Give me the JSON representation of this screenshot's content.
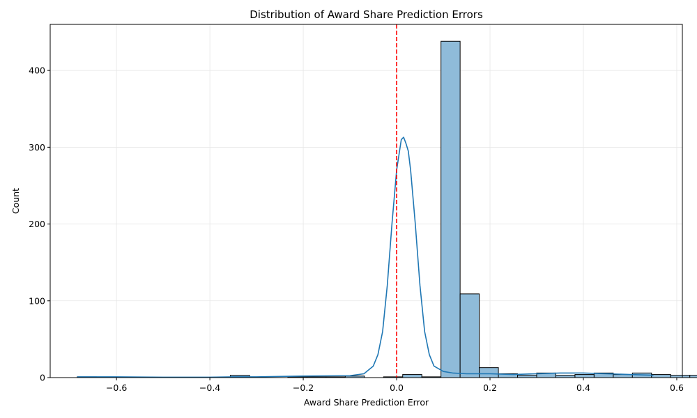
{
  "chart_data": {
    "type": "histogram",
    "title": "Distribution of Award Share Prediction Errors",
    "xlabel": "Award Share Prediction Error",
    "ylabel": "Count",
    "xlim": [
      -0.742,
      0.612
    ],
    "ylim": [
      0,
      460
    ],
    "xticks": [
      -0.6,
      -0.4,
      -0.2,
      0.0,
      0.2,
      0.4,
      0.6
    ],
    "xtick_labels": [
      "−0.6",
      "−0.4",
      "−0.2",
      "0.0",
      "0.2",
      "0.4",
      "0.6"
    ],
    "yticks": [
      0,
      100,
      200,
      300,
      400
    ],
    "ytick_labels": [
      "0",
      "100",
      "200",
      "300",
      "400"
    ],
    "grid": true,
    "bin_start": -0.684,
    "bin_width": 0.041,
    "counts": [
      1,
      0,
      0,
      0,
      0,
      0,
      0,
      0,
      3,
      0,
      0,
      1,
      1,
      1,
      2,
      0,
      1,
      4,
      1,
      438,
      109,
      13,
      5,
      3,
      6,
      3,
      4,
      6,
      4,
      6,
      4,
      3,
      3
    ],
    "bar_color": "#8fbbd9",
    "edge_color": "#000000",
    "kde": {
      "color": "#1f77b4",
      "x": [
        -0.684,
        -0.6,
        -0.5,
        -0.4,
        -0.35,
        -0.3,
        -0.2,
        -0.1,
        -0.07,
        -0.05,
        -0.04,
        -0.03,
        -0.02,
        -0.01,
        0.0,
        0.01,
        0.015,
        0.02,
        0.025,
        0.03,
        0.04,
        0.05,
        0.06,
        0.07,
        0.08,
        0.1,
        0.12,
        0.15,
        0.2,
        0.25,
        0.3,
        0.35,
        0.4,
        0.45,
        0.5,
        0.55
      ],
      "y": [
        1,
        1,
        0.5,
        0.5,
        1,
        1,
        2,
        2.5,
        5,
        15,
        30,
        60,
        120,
        200,
        270,
        310,
        313,
        305,
        295,
        270,
        200,
        120,
        60,
        30,
        15,
        8,
        6,
        5,
        5,
        4,
        5,
        6,
        6,
        5,
        4,
        3
      ]
    },
    "reference_line": {
      "x": 0.0,
      "color": "#ff0000",
      "style": "dashed"
    }
  }
}
